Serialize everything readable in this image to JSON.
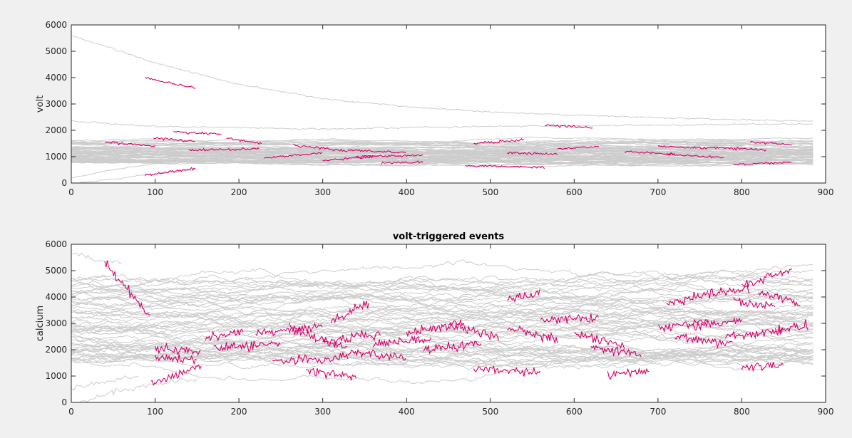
{
  "chart_data": [
    {
      "type": "line",
      "title": "",
      "xlabel": "",
      "ylabel": "volt",
      "xlim": [
        0,
        900
      ],
      "ylim": [
        0,
        6000
      ],
      "xticks": [
        0,
        100,
        200,
        300,
        400,
        500,
        600,
        700,
        800,
        900
      ],
      "yticks": [
        0,
        1000,
        2000,
        3000,
        4000,
        5000,
        6000
      ],
      "grid": false,
      "background_traces": {
        "color": "#cccccc",
        "count": 60,
        "x_range": [
          0,
          885
        ],
        "typical_range": [
          600,
          1800
        ],
        "special": [
          {
            "x": [
              0,
              50,
              100,
              200,
              300,
              400,
              500,
              600,
              700,
              800,
              885
            ],
            "y": [
              5600,
              5100,
              4550,
              3750,
              3200,
              2900,
              2700,
              2580,
              2480,
              2400,
              2350
            ]
          },
          {
            "x": [
              0,
              100,
              300,
              500,
              700,
              885
            ],
            "y": [
              2350,
              2150,
              2050,
              2150,
              2200,
              2250
            ]
          },
          {
            "x": [
              10,
              50,
              100,
              150
            ],
            "y": [
              0,
              150,
              350,
              500
            ]
          },
          {
            "x": [
              0,
              40,
              80,
              120
            ],
            "y": [
              200,
              450,
              650,
              800
            ]
          }
        ]
      },
      "event_traces": {
        "color": "#d4006a",
        "segments": [
          {
            "x0": 88,
            "x1": 148,
            "y0": 4000,
            "y1": 3600
          },
          {
            "x0": 88,
            "x1": 148,
            "y0": 300,
            "y1": 550
          },
          {
            "x0": 565,
            "x1": 622,
            "y0": 2200,
            "y1": 2100
          },
          {
            "x0": 98,
            "x1": 148,
            "y0": 1700,
            "y1": 1600
          },
          {
            "x0": 122,
            "x1": 180,
            "y0": 1950,
            "y1": 1850
          },
          {
            "x0": 40,
            "x1": 100,
            "y0": 1550,
            "y1": 1400
          },
          {
            "x0": 185,
            "x1": 228,
            "y0": 1700,
            "y1": 1500
          },
          {
            "x0": 140,
            "x1": 225,
            "y0": 1250,
            "y1": 1300
          },
          {
            "x0": 230,
            "x1": 300,
            "y0": 950,
            "y1": 1150
          },
          {
            "x0": 265,
            "x1": 330,
            "y0": 1450,
            "y1": 1200
          },
          {
            "x0": 300,
            "x1": 360,
            "y0": 850,
            "y1": 1000
          },
          {
            "x0": 330,
            "x1": 400,
            "y0": 1250,
            "y1": 1150
          },
          {
            "x0": 340,
            "x1": 420,
            "y0": 1000,
            "y1": 1050
          },
          {
            "x0": 370,
            "x1": 420,
            "y0": 750,
            "y1": 800
          },
          {
            "x0": 480,
            "x1": 540,
            "y0": 1500,
            "y1": 1650
          },
          {
            "x0": 470,
            "x1": 565,
            "y0": 650,
            "y1": 600
          },
          {
            "x0": 520,
            "x1": 580,
            "y0": 1150,
            "y1": 1100
          },
          {
            "x0": 580,
            "x1": 630,
            "y0": 1300,
            "y1": 1400
          },
          {
            "x0": 700,
            "x1": 760,
            "y0": 1400,
            "y1": 1300
          },
          {
            "x0": 710,
            "x1": 780,
            "y0": 1100,
            "y1": 950
          },
          {
            "x0": 760,
            "x1": 830,
            "y0": 1350,
            "y1": 1250
          },
          {
            "x0": 790,
            "x1": 860,
            "y0": 700,
            "y1": 800
          },
          {
            "x0": 810,
            "x1": 860,
            "y0": 1550,
            "y1": 1450
          },
          {
            "x0": 660,
            "x1": 720,
            "y0": 1200,
            "y1": 1100
          }
        ]
      }
    },
    {
      "type": "line",
      "title": "volt-triggered events",
      "xlabel": "",
      "ylabel": "calcium",
      "xlim": [
        0,
        900
      ],
      "ylim": [
        0,
        6000
      ],
      "xticks": [
        0,
        100,
        200,
        300,
        400,
        500,
        600,
        700,
        800,
        900
      ],
      "yticks": [
        0,
        1000,
        2000,
        3000,
        4000,
        5000,
        6000
      ],
      "grid": false,
      "background_traces": {
        "color": "#cccccc",
        "count": 60,
        "x_range": [
          0,
          885
        ],
        "typical_range": [
          900,
          5400
        ],
        "special": [
          {
            "x": [
              0,
              20,
              40,
              60
            ],
            "y": [
              5700,
              5500,
              5350,
              5300
            ]
          },
          {
            "x": [
              10,
              50,
              100,
              150
            ],
            "y": [
              0,
              400,
              700,
              900
            ]
          },
          {
            "x": [
              0,
              40,
              80
            ],
            "y": [
              500,
              800,
              1000
            ]
          }
        ]
      },
      "event_traces": {
        "color": "#d4006a",
        "segments": [
          {
            "x0": 40,
            "x1": 95,
            "y0": 5300,
            "y1": 3200
          },
          {
            "x0": 95,
            "x1": 155,
            "y0": 700,
            "y1": 1350
          },
          {
            "x0": 310,
            "x1": 355,
            "y0": 3100,
            "y1": 3800
          },
          {
            "x0": 520,
            "x1": 560,
            "y0": 3950,
            "y1": 4150
          },
          {
            "x0": 710,
            "x1": 760,
            "y0": 3700,
            "y1": 4100
          },
          {
            "x0": 760,
            "x1": 810,
            "y0": 4100,
            "y1": 4300
          },
          {
            "x0": 800,
            "x1": 860,
            "y0": 4400,
            "y1": 5100
          },
          {
            "x0": 820,
            "x1": 870,
            "y0": 4200,
            "y1": 3700
          },
          {
            "x0": 790,
            "x1": 840,
            "y0": 3850,
            "y1": 3650
          },
          {
            "x0": 100,
            "x1": 155,
            "y0": 2100,
            "y1": 1900
          },
          {
            "x0": 100,
            "x1": 150,
            "y0": 1700,
            "y1": 1600
          },
          {
            "x0": 160,
            "x1": 205,
            "y0": 2400,
            "y1": 2700
          },
          {
            "x0": 170,
            "x1": 250,
            "y0": 2050,
            "y1": 2250
          },
          {
            "x0": 220,
            "x1": 300,
            "y0": 2600,
            "y1": 2900
          },
          {
            "x0": 240,
            "x1": 330,
            "y0": 1550,
            "y1": 1700
          },
          {
            "x0": 260,
            "x1": 330,
            "y0": 2900,
            "y1": 2000
          },
          {
            "x0": 280,
            "x1": 340,
            "y0": 1200,
            "y1": 1000
          },
          {
            "x0": 300,
            "x1": 370,
            "y0": 2300,
            "y1": 2600
          },
          {
            "x0": 330,
            "x1": 400,
            "y0": 1900,
            "y1": 1700
          },
          {
            "x0": 360,
            "x1": 430,
            "y0": 2200,
            "y1": 2400
          },
          {
            "x0": 400,
            "x1": 470,
            "y0": 2600,
            "y1": 3000
          },
          {
            "x0": 420,
            "x1": 490,
            "y0": 2000,
            "y1": 2200
          },
          {
            "x0": 480,
            "x1": 560,
            "y0": 1300,
            "y1": 1100
          },
          {
            "x0": 520,
            "x1": 580,
            "y0": 2800,
            "y1": 2400
          },
          {
            "x0": 560,
            "x1": 630,
            "y0": 3100,
            "y1": 3200
          },
          {
            "x0": 620,
            "x1": 680,
            "y0": 2100,
            "y1": 1800
          },
          {
            "x0": 640,
            "x1": 690,
            "y0": 1000,
            "y1": 1200
          },
          {
            "x0": 700,
            "x1": 760,
            "y0": 2800,
            "y1": 3100
          },
          {
            "x0": 720,
            "x1": 790,
            "y0": 2500,
            "y1": 2200
          },
          {
            "x0": 740,
            "x1": 800,
            "y0": 2900,
            "y1": 3100
          },
          {
            "x0": 780,
            "x1": 850,
            "y0": 2500,
            "y1": 2700
          },
          {
            "x0": 800,
            "x1": 850,
            "y0": 1300,
            "y1": 1400
          },
          {
            "x0": 840,
            "x1": 880,
            "y0": 2700,
            "y1": 2900
          },
          {
            "x0": 600,
            "x1": 660,
            "y0": 2600,
            "y1": 2200
          },
          {
            "x0": 450,
            "x1": 510,
            "y0": 2900,
            "y1": 2500
          }
        ]
      }
    }
  ]
}
